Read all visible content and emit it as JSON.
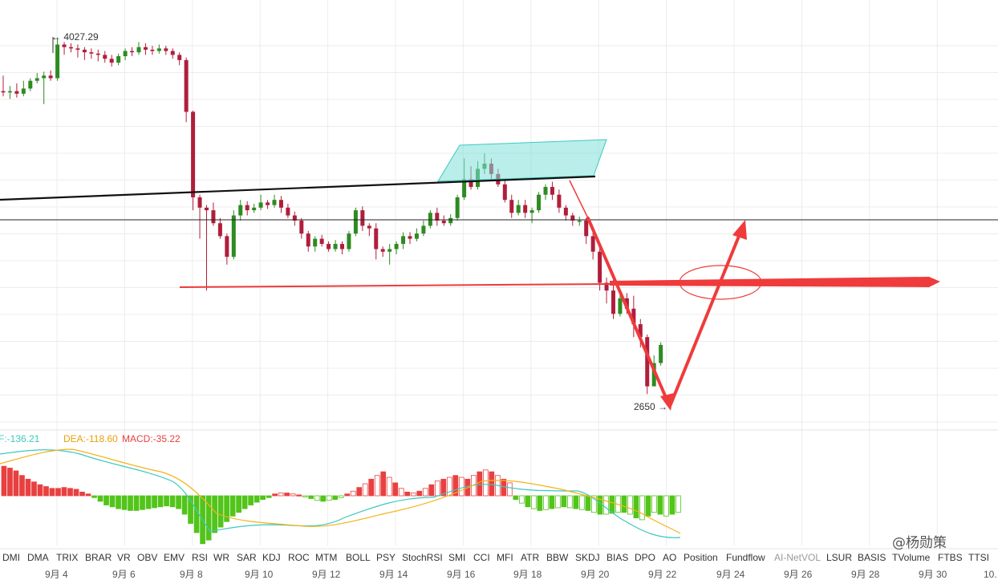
{
  "chart_data": {
    "type": "candlestick",
    "price_range": [
      2530,
      4110
    ],
    "annotations": {
      "high_label": "← 4027.29",
      "low_label": "2650 →"
    },
    "dates": [
      "9月 4",
      "9月 6",
      "9月 8",
      "9月 10",
      "9月 12",
      "9月 14",
      "9月 16",
      "9月 18",
      "9月 20",
      "9月 22",
      "9月 24",
      "9月 26",
      "9月 28",
      "9月 30",
      "10."
    ],
    "candles": [
      [
        3820,
        3815,
        3880,
        3800
      ],
      [
        3815,
        3820,
        3840,
        3790
      ],
      [
        3820,
        3810,
        3850,
        3795
      ],
      [
        3810,
        3830,
        3860,
        3800
      ],
      [
        3830,
        3860,
        3870,
        3820
      ],
      [
        3860,
        3870,
        3890,
        3850
      ],
      [
        3870,
        3880,
        3895,
        3770
      ],
      [
        3880,
        3870,
        3900,
        3860
      ],
      [
        3870,
        4000,
        4027.29,
        3860
      ],
      [
        4000,
        3990,
        4010,
        3960
      ],
      [
        3990,
        3985,
        4005,
        3970
      ],
      [
        3985,
        3980,
        4000,
        3950
      ],
      [
        3980,
        3970,
        3990,
        3940
      ],
      [
        3970,
        3965,
        3985,
        3945
      ],
      [
        3965,
        3960,
        3980,
        3935
      ],
      [
        3960,
        3945,
        3975,
        3930
      ],
      [
        3945,
        3930,
        3960,
        3915
      ],
      [
        3930,
        3955,
        3965,
        3920
      ],
      [
        3955,
        3975,
        3985,
        3940
      ],
      [
        3975,
        3970,
        3990,
        3955
      ],
      [
        3970,
        3990,
        4010,
        3960
      ],
      [
        3990,
        3980,
        4005,
        3960
      ],
      [
        3980,
        3975,
        3995,
        3960
      ],
      [
        3975,
        3985,
        4000,
        3965
      ],
      [
        3985,
        3975,
        3995,
        3960
      ],
      [
        3975,
        3960,
        3985,
        3945
      ],
      [
        3960,
        3940,
        3970,
        3920
      ],
      [
        3940,
        3740,
        3950,
        3700
      ],
      [
        3740,
        3410,
        3745,
        3360
      ],
      [
        3410,
        3370,
        3420,
        3250
      ],
      [
        3370,
        3360,
        3380,
        3050
      ],
      [
        3360,
        3310,
        3390,
        3300
      ],
      [
        3310,
        3260,
        3330,
        3250
      ],
      [
        3260,
        3180,
        3270,
        3150
      ],
      [
        3180,
        3340,
        3360,
        3170
      ],
      [
        3340,
        3380,
        3400,
        3320
      ],
      [
        3380,
        3360,
        3395,
        3340
      ],
      [
        3360,
        3370,
        3385,
        3350
      ],
      [
        3370,
        3390,
        3420,
        3360
      ],
      [
        3390,
        3380,
        3400,
        3365
      ],
      [
        3380,
        3400,
        3420,
        3370
      ],
      [
        3400,
        3370,
        3415,
        3350
      ],
      [
        3370,
        3340,
        3385,
        3330
      ],
      [
        3340,
        3320,
        3355,
        3300
      ],
      [
        3320,
        3270,
        3330,
        3250
      ],
      [
        3270,
        3220,
        3280,
        3200
      ],
      [
        3220,
        3250,
        3260,
        3200
      ],
      [
        3250,
        3230,
        3265,
        3220
      ],
      [
        3230,
        3210,
        3240,
        3200
      ],
      [
        3210,
        3230,
        3245,
        3200
      ],
      [
        3230,
        3210,
        3240,
        3190
      ],
      [
        3210,
        3270,
        3280,
        3200
      ],
      [
        3270,
        3360,
        3370,
        3260
      ],
      [
        3360,
        3300,
        3375,
        3280
      ],
      [
        3300,
        3290,
        3310,
        3260
      ],
      [
        3290,
        3210,
        3310,
        3170
      ],
      [
        3210,
        3200,
        3220,
        3180
      ],
      [
        3200,
        3210,
        3230,
        3150
      ],
      [
        3210,
        3230,
        3240,
        3190
      ],
      [
        3230,
        3260,
        3275,
        3210
      ],
      [
        3260,
        3250,
        3275,
        3230
      ],
      [
        3250,
        3270,
        3290,
        3240
      ],
      [
        3270,
        3300,
        3320,
        3260
      ],
      [
        3300,
        3350,
        3360,
        3290
      ],
      [
        3350,
        3320,
        3370,
        3300
      ],
      [
        3320,
        3310,
        3340,
        3300
      ],
      [
        3310,
        3330,
        3345,
        3300
      ],
      [
        3330,
        3410,
        3420,
        3320
      ],
      [
        3410,
        3480,
        3560,
        3400
      ],
      [
        3480,
        3450,
        3530,
        3440
      ],
      [
        3450,
        3520,
        3550,
        3440
      ],
      [
        3520,
        3540,
        3580,
        3500
      ],
      [
        3540,
        3500,
        3560,
        3480
      ],
      [
        3500,
        3460,
        3520,
        3450
      ],
      [
        3460,
        3400,
        3480,
        3390
      ],
      [
        3400,
        3350,
        3420,
        3330
      ],
      [
        3350,
        3380,
        3400,
        3340
      ],
      [
        3380,
        3350,
        3400,
        3330
      ],
      [
        3350,
        3360,
        3370,
        3310
      ],
      [
        3360,
        3420,
        3430,
        3350
      ],
      [
        3420,
        3450,
        3460,
        3400
      ],
      [
        3450,
        3420,
        3470,
        3400
      ],
      [
        3420,
        3370,
        3440,
        3350
      ],
      [
        3370,
        3340,
        3380,
        3320
      ],
      [
        3340,
        3320,
        3350,
        3300
      ],
      [
        3320,
        3320,
        3335,
        3300
      ],
      [
        3320,
        3260,
        3330,
        3230
      ],
      [
        3260,
        3200,
        3280,
        3170
      ],
      [
        3200,
        3080,
        3220,
        3050
      ],
      [
        3080,
        3050,
        3100,
        3000
      ],
      [
        3050,
        2960,
        3090,
        2940
      ],
      [
        2960,
        3020,
        3040,
        2950
      ],
      [
        3020,
        2980,
        3040,
        2960
      ],
      [
        2980,
        2920,
        3030,
        2870
      ],
      [
        2920,
        2870,
        2940,
        2830
      ],
      [
        2870,
        2680,
        2880,
        2650
      ],
      [
        2680,
        2770,
        2800,
        2680
      ],
      [
        2770,
        2840,
        2850,
        2760
      ]
    ],
    "lines": {
      "neckline": "black trend line",
      "support": "black horizontal line",
      "red_horizontal": "red arrow line",
      "projection": "red V arrow"
    },
    "macd": {
      "legend_prefix": "F:-136.21",
      "dea_label": "DEA:-118.60",
      "macd_label": "MACD:-35.22",
      "dif_color": "#3cc9c0",
      "dea_color": "#f5b21a",
      "pos_color": "#e84040",
      "neg_color": "#52c41a",
      "histogram": [
        32,
        30,
        27,
        22,
        18,
        15,
        12,
        10,
        8,
        8,
        9,
        8,
        7,
        4,
        2,
        -2,
        -6,
        -10,
        -12,
        -14,
        -15,
        -16,
        -16,
        -15,
        -14,
        -13,
        -12,
        -11,
        -12,
        -14,
        -20,
        -30,
        -40,
        -52,
        -48,
        -40,
        -34,
        -28,
        -22,
        -18,
        -14,
        -10,
        -7,
        -4,
        -2,
        2,
        3,
        3,
        2,
        1,
        -1,
        -3,
        -5,
        -6,
        -5,
        -4,
        -2,
        2,
        5,
        9,
        13,
        18,
        22,
        26,
        20,
        14,
        8,
        4,
        3,
        5,
        8,
        12,
        16,
        18,
        20,
        22,
        20,
        18,
        22,
        26,
        28,
        26,
        22,
        18,
        14,
        -4,
        -8,
        -12,
        -14,
        -16,
        -15,
        -14,
        -13,
        -12,
        -13,
        -14,
        -15,
        -16,
        -18,
        -20,
        -20,
        -19,
        -18,
        -18,
        -20,
        -24,
        -26,
        -22,
        -18,
        -20,
        -22,
        -20,
        -18
      ]
    }
  },
  "indicator_tabs": [
    {
      "label": "DMI",
      "active": true
    },
    {
      "label": "DMA",
      "active": true
    },
    {
      "label": "TRIX",
      "active": true
    },
    {
      "label": "BRAR",
      "active": true
    },
    {
      "label": "VR",
      "active": true
    },
    {
      "label": "OBV",
      "active": true
    },
    {
      "label": "EMV",
      "active": true
    },
    {
      "label": "RSI",
      "active": true
    },
    {
      "label": "WR",
      "active": true
    },
    {
      "label": "SAR",
      "active": true
    },
    {
      "label": "KDJ",
      "active": true
    },
    {
      "label": "ROC",
      "active": true
    },
    {
      "label": "MTM",
      "active": true
    },
    {
      "label": "BOLL",
      "active": true
    },
    {
      "label": "PSY",
      "active": true
    },
    {
      "label": "StochRSI",
      "active": true
    },
    {
      "label": "SMI",
      "active": true
    },
    {
      "label": "CCI",
      "active": true
    },
    {
      "label": "MFI",
      "active": true
    },
    {
      "label": "ATR",
      "active": true
    },
    {
      "label": "BBW",
      "active": true
    },
    {
      "label": "SKDJ",
      "active": true
    },
    {
      "label": "BIAS",
      "active": true
    },
    {
      "label": "DPO",
      "active": true
    },
    {
      "label": "AO",
      "active": true
    },
    {
      "label": "Position",
      "active": true
    },
    {
      "label": "Fundflow",
      "active": true
    },
    {
      "label": "AI-NetVOL",
      "active": false
    },
    {
      "label": "LSUR",
      "active": true
    },
    {
      "label": "BASIS",
      "active": true
    },
    {
      "label": "TVolume",
      "active": true
    },
    {
      "label": "FTBS",
      "active": true
    },
    {
      "label": "TTSI",
      "active": true
    }
  ],
  "watermark": "@杨勋策",
  "colors": {
    "up": "#2e8b22",
    "down": "#b01e3c",
    "grid": "#ececec",
    "red_arrow": "#ef3b3b",
    "channel_fill": "#7fe0d9"
  }
}
